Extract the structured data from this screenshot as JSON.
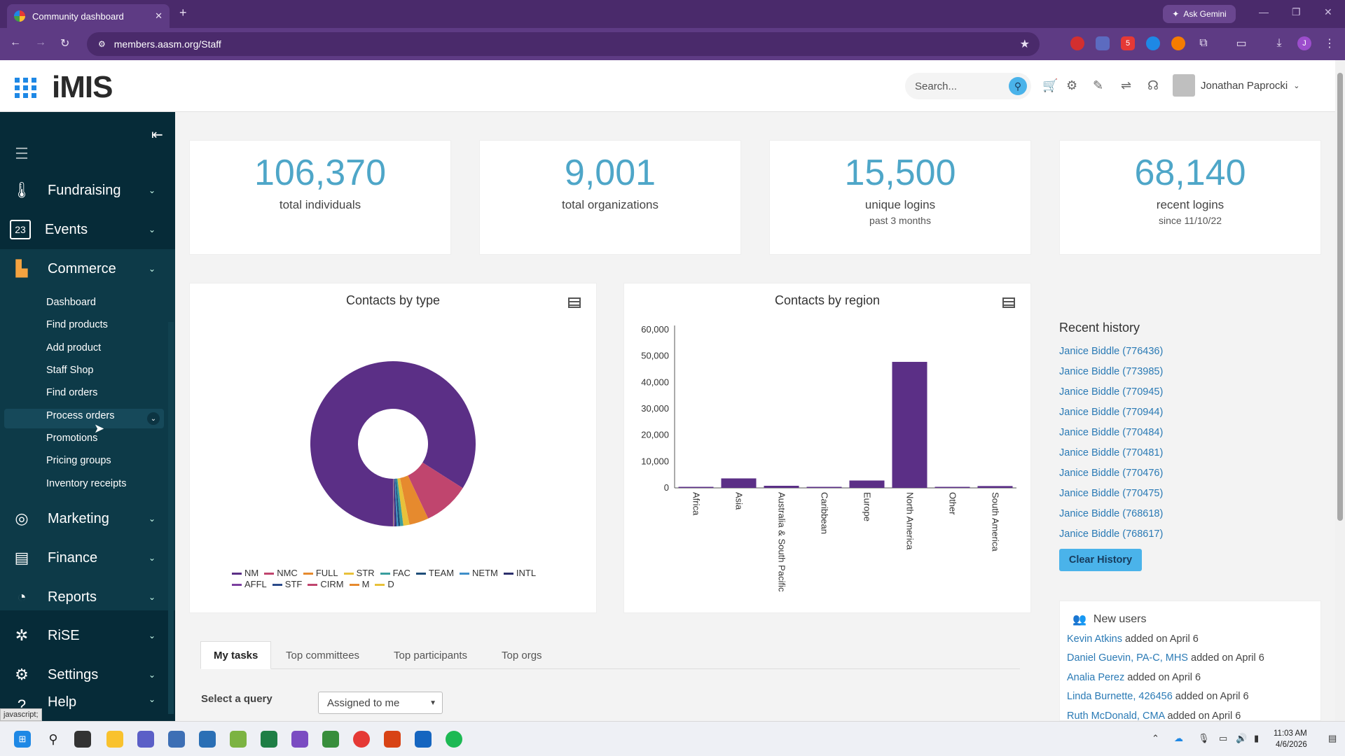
{
  "browser": {
    "tab_title": "Community dashboard",
    "url": "members.aasm.org/Staff",
    "ask_gemini": "Ask Gemini",
    "ext_badge": "5",
    "profile_initial": "J"
  },
  "header": {
    "logo": "iMIS",
    "search_placeholder": "Search...",
    "user_name": "Jonathan Paprocki"
  },
  "sidebar": {
    "items": [
      {
        "label": "Fundraising",
        "icon": "thermometer-icon"
      },
      {
        "label": "Events",
        "icon": "calendar-icon",
        "icon_text": "23"
      },
      {
        "label": "Commerce",
        "icon": "shop-icon"
      },
      {
        "label": "Marketing",
        "icon": "target-icon"
      },
      {
        "label": "Finance",
        "icon": "finance-icon"
      },
      {
        "label": "Reports",
        "icon": "pie-icon"
      },
      {
        "label": "RiSE",
        "icon": "rise-icon"
      },
      {
        "label": "Settings",
        "icon": "gear-icon"
      },
      {
        "label": "Help",
        "icon": "help-icon"
      }
    ],
    "commerce_sub": [
      "Dashboard",
      "Find products",
      "Add product",
      "Staff Shop",
      "Find orders",
      "Process orders",
      "Promotions",
      "Pricing groups",
      "Inventory receipts"
    ],
    "status_text": "javascript;"
  },
  "stats": [
    {
      "value": "106,370",
      "label": "total individuals",
      "sub": ""
    },
    {
      "value": "9,001",
      "label": "total organizations",
      "sub": ""
    },
    {
      "value": "15,500",
      "label": "unique logins",
      "sub": "past 3 months"
    },
    {
      "value": "68,140",
      "label": "recent logins",
      "sub": "since 11/10/22"
    }
  ],
  "chart_data": [
    {
      "type": "pie",
      "title": "Contacts by type",
      "donut": true,
      "legend_position": "bottom",
      "series": [
        {
          "name": "NM",
          "value": 84.0,
          "color": "#5b2f86"
        },
        {
          "name": "NMC",
          "value": 9.0,
          "color": "#c0456e"
        },
        {
          "name": "FULL",
          "value": 3.8,
          "color": "#e68a2e"
        },
        {
          "name": "STR",
          "value": 1.2,
          "color": "#e8c13a"
        },
        {
          "name": "FAC",
          "value": 0.6,
          "color": "#3a9e9e"
        },
        {
          "name": "TEAM",
          "value": 0.4,
          "color": "#1f4e79"
        },
        {
          "name": "NETM",
          "value": 0.3,
          "color": "#3f8fc9"
        },
        {
          "name": "INTL",
          "value": 0.3,
          "color": "#2c2f6b"
        },
        {
          "name": "AFFL",
          "value": 0.2,
          "color": "#7b3fa0"
        },
        {
          "name": "STF",
          "value": 0.1,
          "color": "#2a4a8a"
        },
        {
          "name": "CIRM",
          "value": 0.05,
          "color": "#c0456e"
        },
        {
          "name": "M",
          "value": 0.03,
          "color": "#e68a2e"
        },
        {
          "name": "D",
          "value": 0.02,
          "color": "#e8c13a"
        }
      ]
    },
    {
      "type": "bar",
      "title": "Contacts by region",
      "categories": [
        "Africa",
        "Asia",
        "Australia & South Pacific",
        "Caribbean",
        "Europe",
        "North America",
        "Other",
        "South America"
      ],
      "values": [
        150,
        3600,
        800,
        100,
        2800,
        47800,
        50,
        700
      ],
      "ylim": [
        0,
        60000
      ],
      "yticks": [
        "60,000",
        "50,000",
        "40,000",
        "30,000",
        "20,000",
        "10,000",
        "0"
      ],
      "ytick_values": [
        60000,
        50000,
        40000,
        30000,
        20000,
        10000,
        0
      ],
      "color": "#5b2f86",
      "grid": false
    }
  ],
  "recent_history": {
    "title": "Recent history",
    "items": [
      "Janice Biddle (776436)",
      "Janice Biddle (773985)",
      "Janice Biddle (770945)",
      "Janice Biddle (770944)",
      "Janice Biddle (770484)",
      "Janice Biddle (770481)",
      "Janice Biddle (770476)",
      "Janice Biddle (770475)",
      "Janice Biddle (768618)",
      "Janice Biddle (768617)"
    ],
    "clear_label": "Clear History"
  },
  "new_users": {
    "title": "New users",
    "items": [
      {
        "name": "Kevin Atkins",
        "suffix": " added on April 6"
      },
      {
        "name": "Daniel Guevin, PA-C, MHS",
        "suffix": " added on April 6"
      },
      {
        "name": "Analia Perez",
        "suffix": " added on April 6"
      },
      {
        "name": "Linda Burnette, 426456",
        "suffix": " added on April 6"
      },
      {
        "name": "Ruth McDonald, CMA",
        "suffix": " added on April 6"
      }
    ]
  },
  "tabs": [
    "My tasks",
    "Top committees",
    "Top participants",
    "Top orgs"
  ],
  "query": {
    "label": "Select a query",
    "value": "Assigned to me"
  },
  "taskbar": {
    "time": "11:03 AM",
    "date": "4/6/2026"
  }
}
